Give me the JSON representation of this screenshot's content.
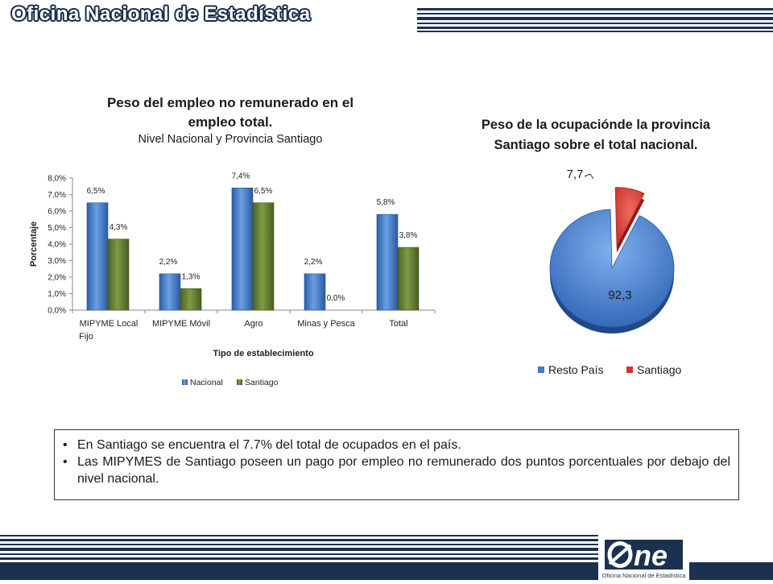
{
  "header": {
    "title": "Oficina Nacional de Estadística"
  },
  "bar_chart_title": {
    "line1": "Peso del empleo no remunerado en el",
    "line2": "empleo total.",
    "subtitle": "Nivel Nacional y Provincia Santiago"
  },
  "pie_chart_title": {
    "line1": "Peso de la ocupaciónde la provincia",
    "line2": "Santiago sobre el total nacional."
  },
  "notes": {
    "bullet1": "En Santiago se encuentra el 7.7% del total de ocupados en el país.",
    "bullet2": "Las MIPYMES de Santiago poseen un pago por empleo no remunerado dos puntos porcentuales por debajo del nivel nacional."
  },
  "logo": {
    "text": "ne",
    "caption": "Oficina Nacional de Estadística"
  },
  "colors": {
    "nacional": "#3f7bcb",
    "santiago": "#5f7a2e",
    "santiago_pie": "#d9302b",
    "navy": "#1c3150"
  },
  "chart_data": [
    {
      "type": "bar",
      "categories": [
        "MIPYME Local Fijo",
        "MIPYME Móvil",
        "Agro",
        "Minas y Pesca",
        "Total"
      ],
      "categories_wrapped": [
        [
          "MIPYME Local",
          "Fijo"
        ],
        [
          "MIPYME Móvil"
        ],
        [
          "Agro"
        ],
        [
          "Minas y Pesca"
        ],
        [
          "Total"
        ]
      ],
      "series": [
        {
          "name": "Nacional",
          "values": [
            6.5,
            2.2,
            7.4,
            2.2,
            5.8
          ],
          "labels": [
            "6,5%",
            "2,2%",
            "7,4%",
            "2,2%",
            "5,8%"
          ]
        },
        {
          "name": "Santiago",
          "values": [
            4.3,
            1.3,
            6.5,
            0.0,
            3.8
          ],
          "labels": [
            "4,3%",
            "1,3%",
            "6,5%",
            "0,0%",
            "3,8%"
          ]
        }
      ],
      "xlabel": "Tipo de establecimiento",
      "ylabel": "Porcentaje",
      "ylim": [
        0,
        8
      ],
      "yticks": [
        0,
        1,
        2,
        3,
        4,
        5,
        6,
        7,
        8
      ],
      "ytick_labels": [
        "0,0%",
        "1,0%",
        "2,0%",
        "3,0%",
        "4,0%",
        "5,0%",
        "6,0%",
        "7,0%",
        "8,0%"
      ],
      "legend": "bottom",
      "grid": false
    },
    {
      "type": "pie",
      "labels": [
        "Resto País",
        "Santiago"
      ],
      "values": [
        92.3,
        7.7
      ],
      "value_labels": [
        "92,3",
        "7,7"
      ],
      "legend": "bottom"
    }
  ]
}
